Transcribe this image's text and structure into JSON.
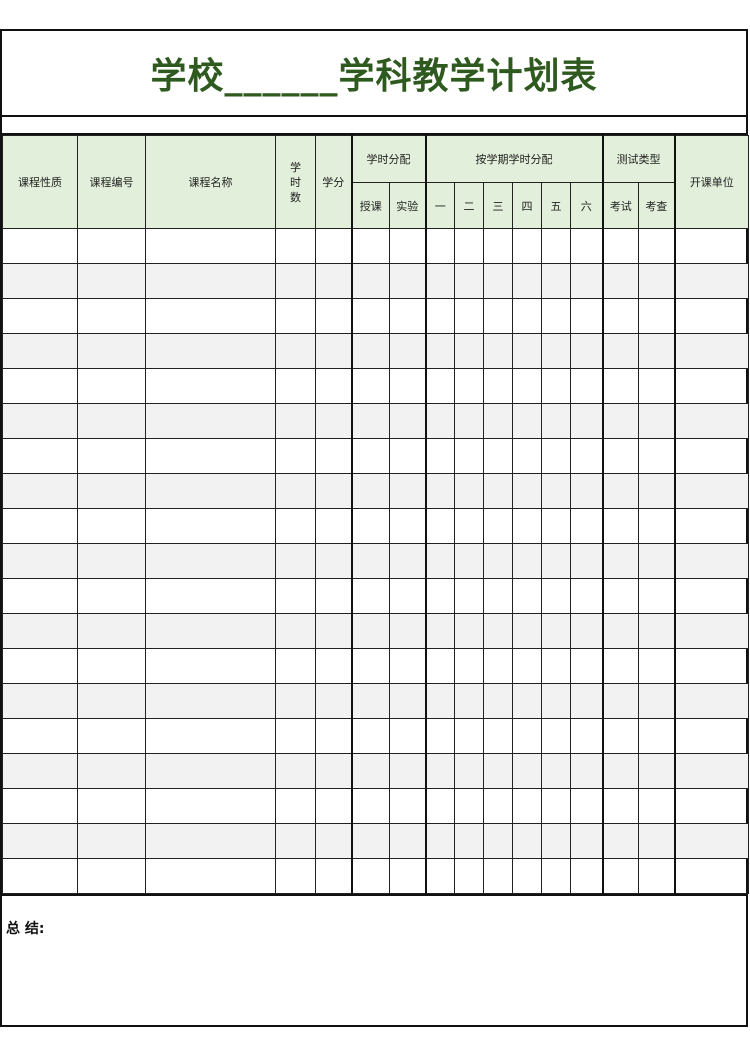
{
  "title": "学校______学科教学计划表",
  "colors": {
    "title": "#2f5a1f",
    "header_bg": "#e2efda",
    "alt_row_bg": "#f2f2f2"
  },
  "headers": {
    "course_type": "课程性质",
    "course_code": "课程编号",
    "course_name": "课程名称",
    "hours": "学\n时\n数",
    "credits": "学分",
    "hour_distribution": "学时分配",
    "lecture": "授课",
    "experiment": "实验",
    "semester_distribution": "按学期学时分配",
    "semesters": [
      "一",
      "二",
      "三",
      "四",
      "五",
      "六"
    ],
    "test_type": "测试类型",
    "exam": "考试",
    "assessment": "考查",
    "department": "开课单位"
  },
  "summary_label": "总  结:"
}
